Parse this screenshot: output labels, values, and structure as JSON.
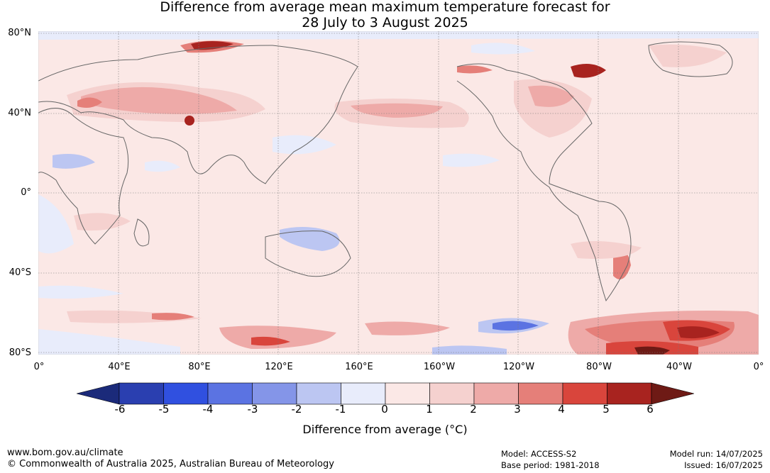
{
  "title_line1": "Difference from average mean maximum temperature forecast for",
  "title_line2": "28 July to 3 August 2025",
  "lat_labels": [
    "80°N",
    "40°N",
    "0°",
    "40°S",
    "80°S"
  ],
  "lon_labels": [
    "0°",
    "40°E",
    "80°E",
    "120°E",
    "160°E",
    "160°W",
    "120°W",
    "80°W",
    "40°W",
    "0°"
  ],
  "colorbar": {
    "ticks": [
      "-6",
      "-5",
      "-4",
      "-3",
      "-2",
      "-1",
      "0",
      "1",
      "2",
      "3",
      "4",
      "5",
      "6"
    ],
    "colors": [
      "#1b2a7a",
      "#2a3fb0",
      "#3050e0",
      "#5b73e2",
      "#8495e8",
      "#bcc6f2",
      "#e8ecfb",
      "#fbe8e6",
      "#f5d1cf",
      "#eeaaa8",
      "#e57f79",
      "#d9453c",
      "#a8231f",
      "#6e1a15"
    ],
    "label": "Difference from average (°C)"
  },
  "map": {
    "background_color": "#fbe8e6",
    "land_outline_color": "#666666",
    "graticule_color": "#777777"
  },
  "footer": {
    "left_line1": "www.bom.gov.au/climate",
    "left_line2": "© Commonwealth of Australia 2025, Australian Bureau of Meteorology",
    "model": "Model: ACCESS-S2",
    "base_period": "Base period: 1981-2018",
    "model_run": "Model run: 14/07/2025",
    "issued": "Issued: 16/07/2025"
  }
}
